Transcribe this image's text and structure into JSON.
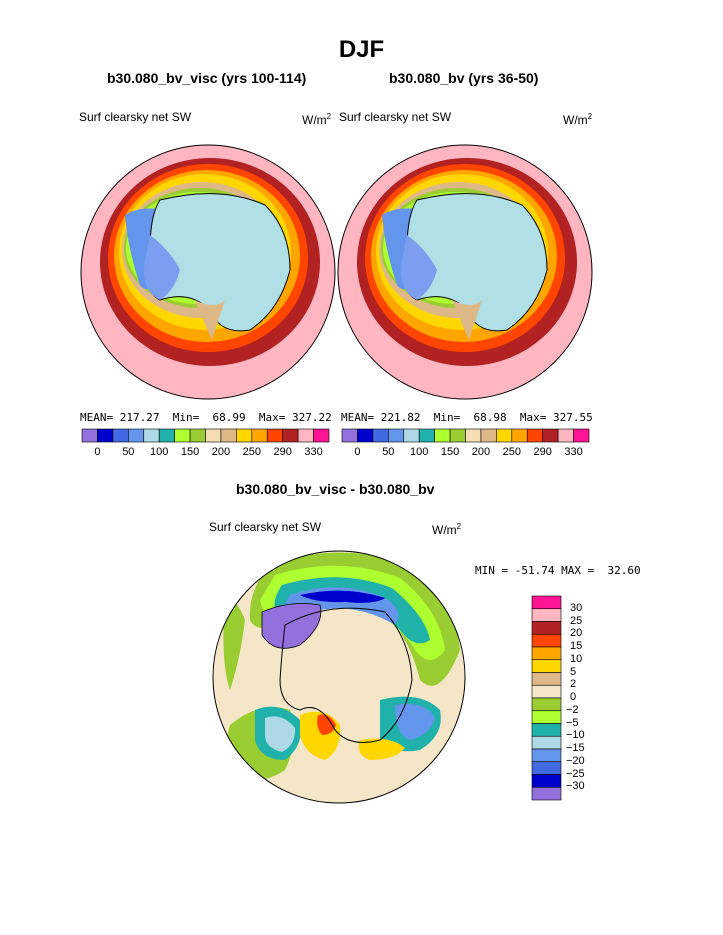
{
  "title": "DJF",
  "panels": [
    {
      "subtitle": "b30.080_bv_visc (yrs 100-114)",
      "variable": "Surf clearsky net SW",
      "units_base": "W/m",
      "units_exp": "2",
      "stats": {
        "mean_label": "MEAN=",
        "mean": "217.27",
        "min_label": "Min=",
        "min": "68.99",
        "max_label": "Max=",
        "max": "327.22"
      }
    },
    {
      "subtitle": "b30.080_bv (yrs 36-50)",
      "variable": "Surf clearsky net SW",
      "units_base": "W/m",
      "units_exp": "2",
      "stats": {
        "mean_label": "MEAN=",
        "mean": "221.82",
        "min_label": "Min=",
        "min": "68.98",
        "max_label": "Max=",
        "max": "327.55"
      }
    }
  ],
  "colorbar_top": {
    "colors": [
      "#9370db",
      "#0000cd",
      "#4169e1",
      "#6495ed",
      "#add8e6",
      "#20b2aa",
      "#adff2f",
      "#9acd32",
      "#f5deb3",
      "#deb887",
      "#ffd700",
      "#ffa500",
      "#ff4500",
      "#b22222",
      "#ffb6c1",
      "#ff1493"
    ],
    "labels": [
      "0",
      "50",
      "100",
      "150",
      "200",
      "250",
      "290",
      "330"
    ]
  },
  "diff": {
    "subtitle": "b30.080_bv_visc - b30.080_bv",
    "variable": "Surf clearsky net SW",
    "units_base": "W/m",
    "units_exp": "2",
    "min_label": "MIN =",
    "min": "-51.74",
    "max_label": "MAX =",
    "max": "32.60",
    "colorbar": {
      "colors_top_to_bottom": [
        "#ff1493",
        "#ffb6c1",
        "#b22222",
        "#ff4500",
        "#ffa500",
        "#ffd700",
        "#deb887",
        "#f5e6c8",
        "#9acd32",
        "#adff2f",
        "#20b2aa",
        "#add8e6",
        "#6495ed",
        "#4169e1",
        "#0000cd",
        "#9370db"
      ],
      "labels": [
        "30",
        "25",
        "20",
        "15",
        "10",
        "5",
        "2",
        "0",
        "−2",
        "−5",
        "−10",
        "−15",
        "−20",
        "−25",
        "−30"
      ]
    }
  },
  "colors": {
    "ocean_far": "#ffb6c1",
    "continent": "#b0e0e6",
    "continent_edge": "#7b9ef0",
    "diff_background": "#f5e6c8"
  }
}
